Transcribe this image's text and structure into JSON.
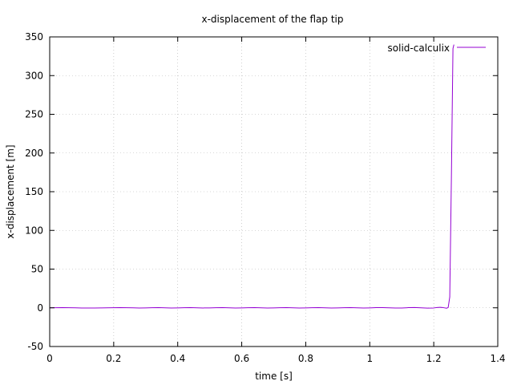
{
  "chart_data": {
    "type": "line",
    "title": "x-displacement of the flap tip",
    "xlabel": "time [s]",
    "ylabel": "x-displacement [m]",
    "xlim": [
      0,
      1.4
    ],
    "ylim": [
      -50,
      350
    ],
    "xticks": [
      0,
      0.2,
      0.4,
      0.6,
      0.8,
      1,
      1.2,
      1.4
    ],
    "yticks": [
      -50,
      0,
      50,
      100,
      150,
      200,
      250,
      300,
      350
    ],
    "grid": true,
    "legend_position": "top-right",
    "series": [
      {
        "name": "solid-calculix",
        "color": "#9400d3",
        "points": [
          [
            0.0,
            0.0
          ],
          [
            0.02,
            0.1
          ],
          [
            0.04,
            0.2
          ],
          [
            0.06,
            0.1
          ],
          [
            0.08,
            0.0
          ],
          [
            0.1,
            -0.2
          ],
          [
            0.12,
            -0.3
          ],
          [
            0.14,
            -0.2
          ],
          [
            0.16,
            -0.1
          ],
          [
            0.18,
            0.0
          ],
          [
            0.2,
            0.1
          ],
          [
            0.22,
            0.2
          ],
          [
            0.24,
            0.1
          ],
          [
            0.26,
            0.0
          ],
          [
            0.28,
            -0.2
          ],
          [
            0.3,
            -0.1
          ],
          [
            0.32,
            0.1
          ],
          [
            0.34,
            0.2
          ],
          [
            0.36,
            0.0
          ],
          [
            0.38,
            -0.2
          ],
          [
            0.4,
            -0.1
          ],
          [
            0.42,
            0.1
          ],
          [
            0.44,
            0.2
          ],
          [
            0.46,
            0.0
          ],
          [
            0.48,
            -0.2
          ],
          [
            0.5,
            -0.1
          ],
          [
            0.52,
            0.1
          ],
          [
            0.54,
            0.2
          ],
          [
            0.56,
            0.0
          ],
          [
            0.58,
            -0.2
          ],
          [
            0.6,
            -0.1
          ],
          [
            0.62,
            0.1
          ],
          [
            0.64,
            0.2
          ],
          [
            0.66,
            0.0
          ],
          [
            0.68,
            -0.2
          ],
          [
            0.7,
            -0.1
          ],
          [
            0.72,
            0.1
          ],
          [
            0.74,
            0.2
          ],
          [
            0.76,
            0.0
          ],
          [
            0.78,
            -0.2
          ],
          [
            0.8,
            -0.1
          ],
          [
            0.82,
            0.1
          ],
          [
            0.84,
            0.2
          ],
          [
            0.86,
            0.0
          ],
          [
            0.88,
            -0.2
          ],
          [
            0.9,
            -0.1
          ],
          [
            0.92,
            0.1
          ],
          [
            0.94,
            0.3
          ],
          [
            0.96,
            0.0
          ],
          [
            0.98,
            -0.3
          ],
          [
            1.0,
            -0.1
          ],
          [
            1.02,
            0.2
          ],
          [
            1.04,
            0.3
          ],
          [
            1.06,
            0.0
          ],
          [
            1.08,
            -0.3
          ],
          [
            1.1,
            -0.2
          ],
          [
            1.12,
            0.2
          ],
          [
            1.14,
            0.4
          ],
          [
            1.16,
            0.0
          ],
          [
            1.18,
            -0.4
          ],
          [
            1.2,
            -0.2
          ],
          [
            1.21,
            0.4
          ],
          [
            1.22,
            0.6
          ],
          [
            1.23,
            0.2
          ],
          [
            1.24,
            -0.5
          ],
          [
            1.245,
            0.3
          ],
          [
            1.25,
            14.0
          ],
          [
            1.255,
            165.0
          ],
          [
            1.26,
            335.0
          ],
          [
            1.263,
            340.0
          ]
        ]
      }
    ]
  }
}
